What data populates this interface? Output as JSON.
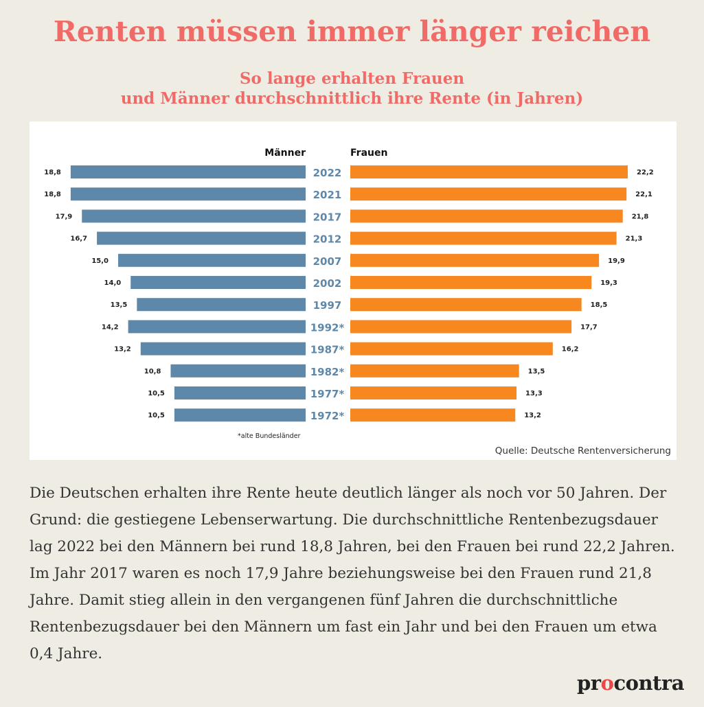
{
  "header": {
    "title": "Renten müssen immer länger reichen",
    "subtitle_line1": "So lange erhalten Frauen",
    "subtitle_line2": "und Männer durchschnittlich ihre Rente (in Jahren)"
  },
  "chart_data": {
    "type": "bar",
    "orientation": "horizontal-butterfly",
    "categories": [
      "2022",
      "2021",
      "2017",
      "2012",
      "2007",
      "2002",
      "1997",
      "1992*",
      "1987*",
      "1982*",
      "1977*",
      "1972*"
    ],
    "series": [
      {
        "name": "Männer",
        "color": "#5e88aa",
        "values": [
          18.8,
          18.8,
          17.9,
          16.7,
          15.0,
          14.0,
          13.5,
          14.2,
          13.2,
          10.8,
          10.5,
          10.5
        ],
        "labels": [
          "18,8",
          "18,8",
          "17,9",
          "16,7",
          "15,0",
          "14,0",
          "13,5",
          "14,2",
          "13,2",
          "10,8",
          "10,5",
          "10,5"
        ]
      },
      {
        "name": "Frauen",
        "color": "#f7871f",
        "values": [
          22.2,
          22.1,
          21.8,
          21.3,
          19.9,
          19.3,
          18.5,
          17.7,
          16.2,
          13.5,
          13.3,
          13.2
        ],
        "labels": [
          "22,2",
          "22,1",
          "21,8",
          "21,3",
          "19,9",
          "19,3",
          "18,5",
          "17,7",
          "16,2",
          "13,5",
          "13,3",
          "13,2"
        ]
      }
    ],
    "category_label_color": "#5e88aa",
    "xlim": [
      0,
      22.2
    ],
    "footnote": "*alte Bundesländer",
    "source": "Quelle: Deutsche Rentenversicherung"
  },
  "body": {
    "text": "Die Deutschen erhalten ihre Rente heute deutlich länger als noch vor 50 Jahren. Der Grund: die gestiegene Lebenserwartung. Die durchschnittliche Rentenbezugsdauer lag 2022 bei den Männern bei rund 18,8 Jahren, bei den Frauen bei rund 22,2 Jahren. Im Jahr 2017 waren es noch 17,9 Jahre beziehungsweise bei den Frauen rund 21,8 Jahre. Damit stieg allein in den vergangenen fünf Jahren die durchschnittliche Rentenbezugsdauer bei den Männern um fast ein Jahr und bei den Frauen um etwa 0,4 Jahre."
  },
  "brand": {
    "part1": "pr",
    "accent": "o",
    "part2": "contra",
    "accent_color": "#e84848"
  }
}
